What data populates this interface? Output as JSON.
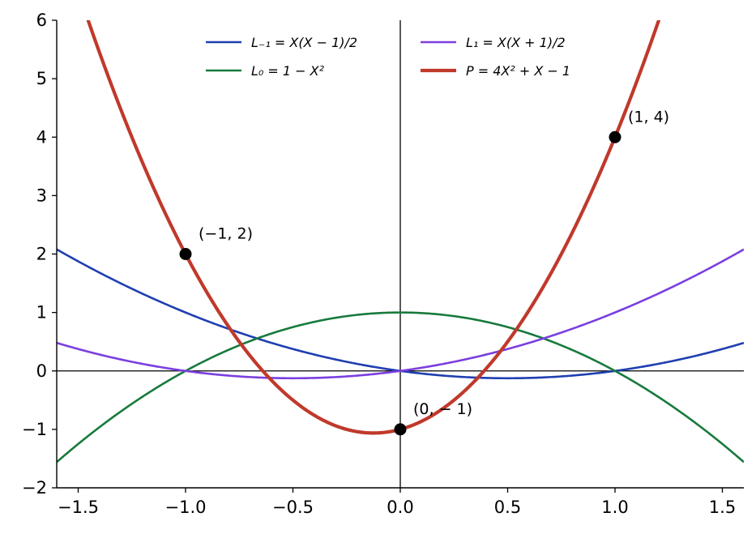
{
  "chart_data": {
    "type": "line",
    "xlim": [
      -1.6,
      1.6
    ],
    "ylim": [
      -2,
      6
    ],
    "x_ticks": [
      -1.5,
      -1.0,
      -0.5,
      0.0,
      0.5,
      1.0,
      1.5
    ],
    "x_tick_labels": [
      "−1.5",
      "−1.0",
      "−0.5",
      "0.0",
      "0.5",
      "1.0",
      "1.5"
    ],
    "y_ticks": [
      -2,
      -1,
      0,
      1,
      2,
      3,
      4,
      5,
      6
    ],
    "y_tick_labels": [
      "−2",
      "−1",
      "0",
      "1",
      "2",
      "3",
      "4",
      "5",
      "6"
    ],
    "grid": false,
    "legend_position": "top-center",
    "series": [
      {
        "name": "L₋₁ = X(X − 1)/2",
        "color": "#1f3fb0",
        "formula": "x*(x-1)/2",
        "x": [
          -1.6,
          -1,
          0,
          0.5,
          1,
          1.6
        ],
        "y": [
          2.08,
          1,
          0,
          -0.125,
          0,
          0.48
        ]
      },
      {
        "name": "L₀ = 1 − X²",
        "color": "#177a3c",
        "formula": "1-x*x",
        "x": [
          -1.6,
          -1,
          0,
          1,
          1.6
        ],
        "y": [
          -1.56,
          0,
          1,
          0,
          -1.56
        ]
      },
      {
        "name": "L₁ = X(X + 1)/2",
        "color": "#7b3fe0",
        "formula": "x*(x+1)/2",
        "x": [
          -1.6,
          -1,
          -0.5,
          0,
          1,
          1.6
        ],
        "y": [
          0.48,
          0,
          -0.125,
          0,
          1,
          2.08
        ]
      },
      {
        "name": "P = 4X² + X − 1",
        "color": "#c0392b",
        "formula": "4*x*x+x-1",
        "x": [
          -1.45,
          -1,
          -0.125,
          0,
          1,
          1.2
        ],
        "y": [
          6,
          2,
          -1.0625,
          -1,
          4,
          5.96
        ]
      }
    ],
    "points": [
      {
        "x": -1,
        "y": 2,
        "label": "(−1, 2)"
      },
      {
        "x": 0,
        "y": -1,
        "label": "(0, − 1)"
      },
      {
        "x": 1,
        "y": 4,
        "label": "(1, 4)"
      }
    ]
  }
}
